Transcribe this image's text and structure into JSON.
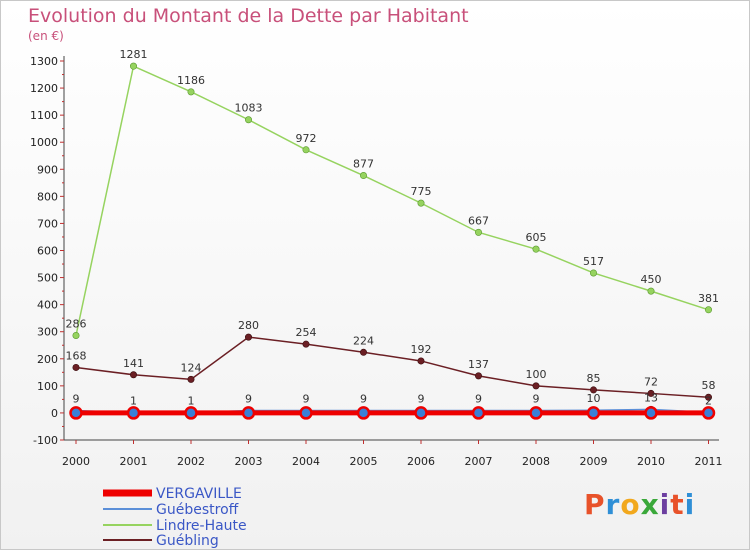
{
  "chart_data": {
    "type": "line",
    "title": "Evolution du Montant de la Dette par Habitant",
    "subtitle": "(en €)",
    "x": [
      "2000",
      "2001",
      "2002",
      "2003",
      "2004",
      "2005",
      "2006",
      "2007",
      "2008",
      "2009",
      "2010",
      "2011"
    ],
    "yticks": [
      -100,
      0,
      100,
      200,
      300,
      400,
      500,
      600,
      700,
      800,
      900,
      1000,
      1100,
      1200,
      1300
    ],
    "ylim": [
      -100,
      1300
    ],
    "grid": false,
    "legend_position": "bottom-left",
    "series": [
      {
        "name": "VERGAVILLE",
        "color": "#ee0000",
        "values": [
          0,
          0,
          0,
          0,
          0,
          0,
          0,
          0,
          0,
          0,
          0,
          0
        ],
        "labels": []
      },
      {
        "name": "Guébestroff",
        "color": "#5b8fd8",
        "values": [
          9,
          1,
          1,
          9,
          9,
          9,
          9,
          9,
          9,
          10,
          13,
          2
        ],
        "labels": [
          "9",
          "1",
          "1",
          "9",
          "9",
          "9",
          "9",
          "9",
          "9",
          "10",
          "13",
          "2"
        ]
      },
      {
        "name": "Lindre-Haute",
        "color": "#96d35f",
        "values": [
          286,
          1281,
          1186,
          1083,
          972,
          877,
          775,
          667,
          605,
          517,
          450,
          381
        ],
        "labels": [
          "286",
          "1281",
          "1186",
          "1083",
          "972",
          "877",
          "775",
          "667",
          "605",
          "517",
          "450",
          "381"
        ]
      },
      {
        "name": "Guébling",
        "color": "#6b1f24",
        "values": [
          168,
          141,
          124,
          280,
          254,
          224,
          192,
          137,
          100,
          85,
          72,
          58
        ],
        "labels": [
          "168",
          "141",
          "124",
          "280",
          "254",
          "224",
          "192",
          "137",
          "100",
          "85",
          "72",
          "58"
        ]
      }
    ]
  },
  "brand": {
    "text": "Proxiti",
    "colors": [
      "#e8522a",
      "#2f8fd6",
      "#f2a81d",
      "#3aa83a",
      "#6c3fa0",
      "#e8522a",
      "#2f8fd6"
    ]
  }
}
